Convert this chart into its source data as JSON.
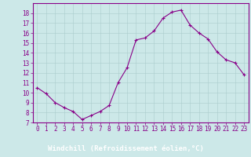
{
  "x": [
    0,
    1,
    2,
    3,
    4,
    5,
    6,
    7,
    8,
    9,
    10,
    11,
    12,
    13,
    14,
    15,
    16,
    17,
    18,
    19,
    20,
    21,
    22,
    23
  ],
  "y": [
    10.5,
    9.9,
    9.0,
    8.5,
    8.1,
    7.3,
    7.7,
    8.1,
    8.7,
    11.0,
    12.5,
    15.3,
    15.5,
    16.2,
    17.5,
    18.1,
    18.3,
    16.8,
    16.0,
    15.4,
    14.1,
    13.3,
    13.0,
    11.8
  ],
  "line_color": "#880088",
  "marker": "+",
  "marker_size": 3,
  "bg_color": "#cce8e8",
  "plot_bg_color": "#cce8e8",
  "grid_color": "#aacccc",
  "xlabel": "Windchill (Refroidissement éolien,°C)",
  "xlabel_color": "#880088",
  "xlabel_fontsize": 6.5,
  "xlabel_bar_color": "#880088",
  "ylim": [
    7,
    19
  ],
  "xlim": [
    -0.5,
    23.5
  ],
  "ytick_vals": [
    7,
    8,
    9,
    10,
    11,
    12,
    13,
    14,
    15,
    16,
    17,
    18
  ],
  "xtick_vals": [
    0,
    1,
    2,
    3,
    4,
    5,
    6,
    7,
    8,
    9,
    10,
    11,
    12,
    13,
    14,
    15,
    16,
    17,
    18,
    19,
    20,
    21,
    22,
    23
  ],
  "tick_fontsize": 5.5,
  "tick_color": "#880088",
  "spine_color": "#880088",
  "linewidth": 0.8,
  "marker_edge_width": 0.8
}
